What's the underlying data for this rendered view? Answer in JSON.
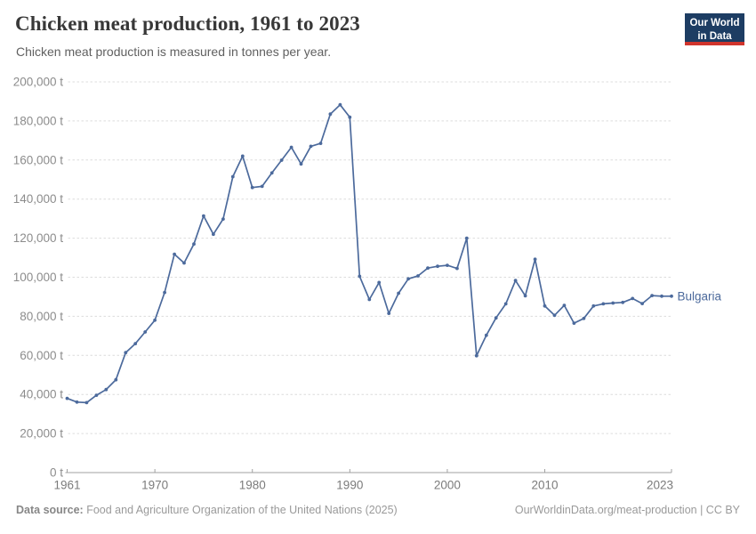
{
  "header": {
    "title": "Chicken meat production, 1961 to 2023",
    "subtitle": "Chicken meat production is measured in tonnes per year.",
    "logo": {
      "line1": "Our World",
      "line2": "in Data"
    }
  },
  "footer": {
    "source_label": "Data source:",
    "source_text": " Food and Agriculture Organization of the United Nations (2025)",
    "attribution": "OurWorldinData.org/meat-production | CC BY"
  },
  "colors": {
    "series": "#4C6A9C",
    "grid": "#DCDCDC",
    "axis": "#A1A1A1",
    "y_tick_text": "#8C8C8C",
    "x_tick_text": "#7B7B7B",
    "logo_bg": "#1D3D63",
    "logo_stripe": "#D0342C"
  },
  "chart_data": {
    "type": "line",
    "title": "Chicken meat production, 1961 to 2023",
    "unit": "tonnes",
    "grid": "horizontal-dashed",
    "legend_position": "end-of-line-label",
    "xlim": [
      1961,
      2023
    ],
    "ylim": [
      0,
      200000
    ],
    "xticks": [
      {
        "v": 1961,
        "label": "1961"
      },
      {
        "v": 1970,
        "label": "1970"
      },
      {
        "v": 1980,
        "label": "1980"
      },
      {
        "v": 1990,
        "label": "1990"
      },
      {
        "v": 2000,
        "label": "2000"
      },
      {
        "v": 2010,
        "label": "2010"
      },
      {
        "v": 2023,
        "label": "2023"
      }
    ],
    "yticks": [
      {
        "v": 0,
        "label": "0 t"
      },
      {
        "v": 20000,
        "label": "20,000 t"
      },
      {
        "v": 40000,
        "label": "40,000 t"
      },
      {
        "v": 60000,
        "label": "60,000 t"
      },
      {
        "v": 80000,
        "label": "80,000 t"
      },
      {
        "v": 100000,
        "label": "100,000 t"
      },
      {
        "v": 120000,
        "label": "120,000 t"
      },
      {
        "v": 140000,
        "label": "140,000 t"
      },
      {
        "v": 160000,
        "label": "160,000 t"
      },
      {
        "v": 180000,
        "label": "180,000 t"
      },
      {
        "v": 200000,
        "label": "200,000 t"
      }
    ],
    "x": [
      1961,
      1962,
      1963,
      1964,
      1965,
      1966,
      1967,
      1968,
      1969,
      1970,
      1971,
      1972,
      1973,
      1974,
      1975,
      1976,
      1977,
      1978,
      1979,
      1980,
      1981,
      1982,
      1983,
      1984,
      1985,
      1986,
      1987,
      1988,
      1989,
      1990,
      1991,
      1992,
      1993,
      1994,
      1995,
      1996,
      1997,
      1998,
      1999,
      2000,
      2001,
      2002,
      2003,
      2004,
      2005,
      2006,
      2007,
      2008,
      2009,
      2010,
      2011,
      2012,
      2013,
      2014,
      2015,
      2016,
      2017,
      2018,
      2019,
      2020,
      2021,
      2022,
      2023
    ],
    "series": [
      {
        "name": "Bulgaria",
        "color": "#4C6A9C",
        "values": [
          38000,
          36100,
          35800,
          39600,
          42500,
          47500,
          61400,
          66000,
          72000,
          78000,
          92200,
          111800,
          107300,
          117000,
          131400,
          122000,
          129800,
          151500,
          162000,
          145900,
          146500,
          153400,
          159900,
          166500,
          158000,
          167000,
          168500,
          183500,
          188300,
          181900,
          100500,
          88600,
          97300,
          81500,
          91800,
          99200,
          100700,
          104700,
          105600,
          106100,
          104500,
          120000,
          59800,
          70300,
          79200,
          86400,
          98300,
          90500,
          109200,
          85300,
          80500,
          85600,
          76500,
          78900,
          85300,
          86400,
          86800,
          87100,
          89100,
          86500,
          90600,
          90300,
          90300
        ]
      }
    ]
  }
}
